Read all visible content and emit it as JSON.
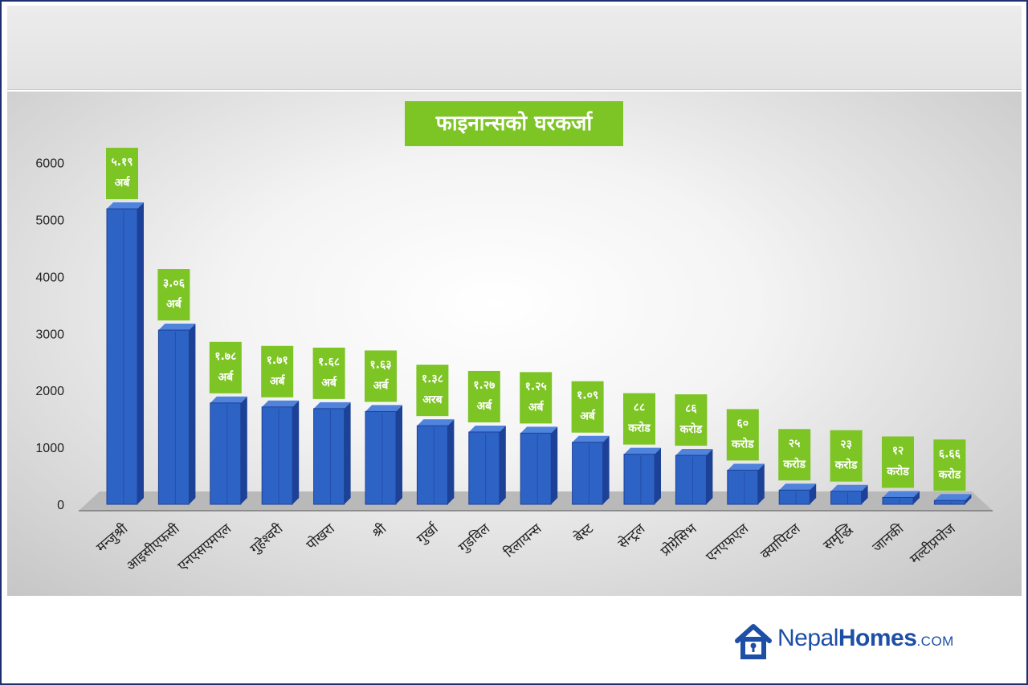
{
  "chart_data": {
    "type": "bar",
    "title": "फाइनान्सको घरकर्जा",
    "categories": [
      "मन्जुश्री",
      "आइसीएफसी",
      "एनएसएमएल",
      "गुहेश्वरी",
      "पोखरा",
      "श्री",
      "गुर्खा",
      "गुडविल",
      "रिलायन्स",
      "बेस्ट",
      "सेन्ट्रल",
      "प्रोग्रेसिभ",
      "एनएफएल",
      "क्यापिटल",
      "समृद्धि",
      "जानकी",
      "मल्टीप्रपोज"
    ],
    "values": [
      5190,
      3060,
      1780,
      1710,
      1680,
      1630,
      1380,
      1270,
      1250,
      1090,
      880,
      860,
      600,
      250,
      230,
      120,
      66.6
    ],
    "data_labels": [
      [
        "५.१९",
        "अर्ब"
      ],
      [
        "३.०६",
        "अर्ब"
      ],
      [
        "१.७८",
        "अर्ब"
      ],
      [
        "१.७१",
        "अर्ब"
      ],
      [
        "१.६८",
        "अर्ब"
      ],
      [
        "१.६३",
        "अर्ब"
      ],
      [
        "१.३८",
        "अरब"
      ],
      [
        "१.२७",
        "अर्ब"
      ],
      [
        "१.२५",
        "अर्ब"
      ],
      [
        "१.०९",
        "अर्ब"
      ],
      [
        "८८",
        "करोड"
      ],
      [
        "८६",
        "करोड"
      ],
      [
        "६०",
        "करोड"
      ],
      [
        "२५",
        "करोड"
      ],
      [
        "२३",
        "करोड"
      ],
      [
        "१२",
        "करोड"
      ],
      [
        "६.६६",
        "करोड"
      ]
    ],
    "y_ticks": [
      0,
      1000,
      2000,
      3000,
      4000,
      5000,
      6000
    ],
    "ylim": [
      0,
      6000
    ],
    "xlabel": "",
    "ylabel": "",
    "grid": false,
    "bar_color": "#2e63c6",
    "label_color": "#7dc425"
  },
  "brand": {
    "name_part1": "Nepal",
    "name_part2": "Homes",
    "suffix": ".COM",
    "color": "#1e4fa6"
  }
}
